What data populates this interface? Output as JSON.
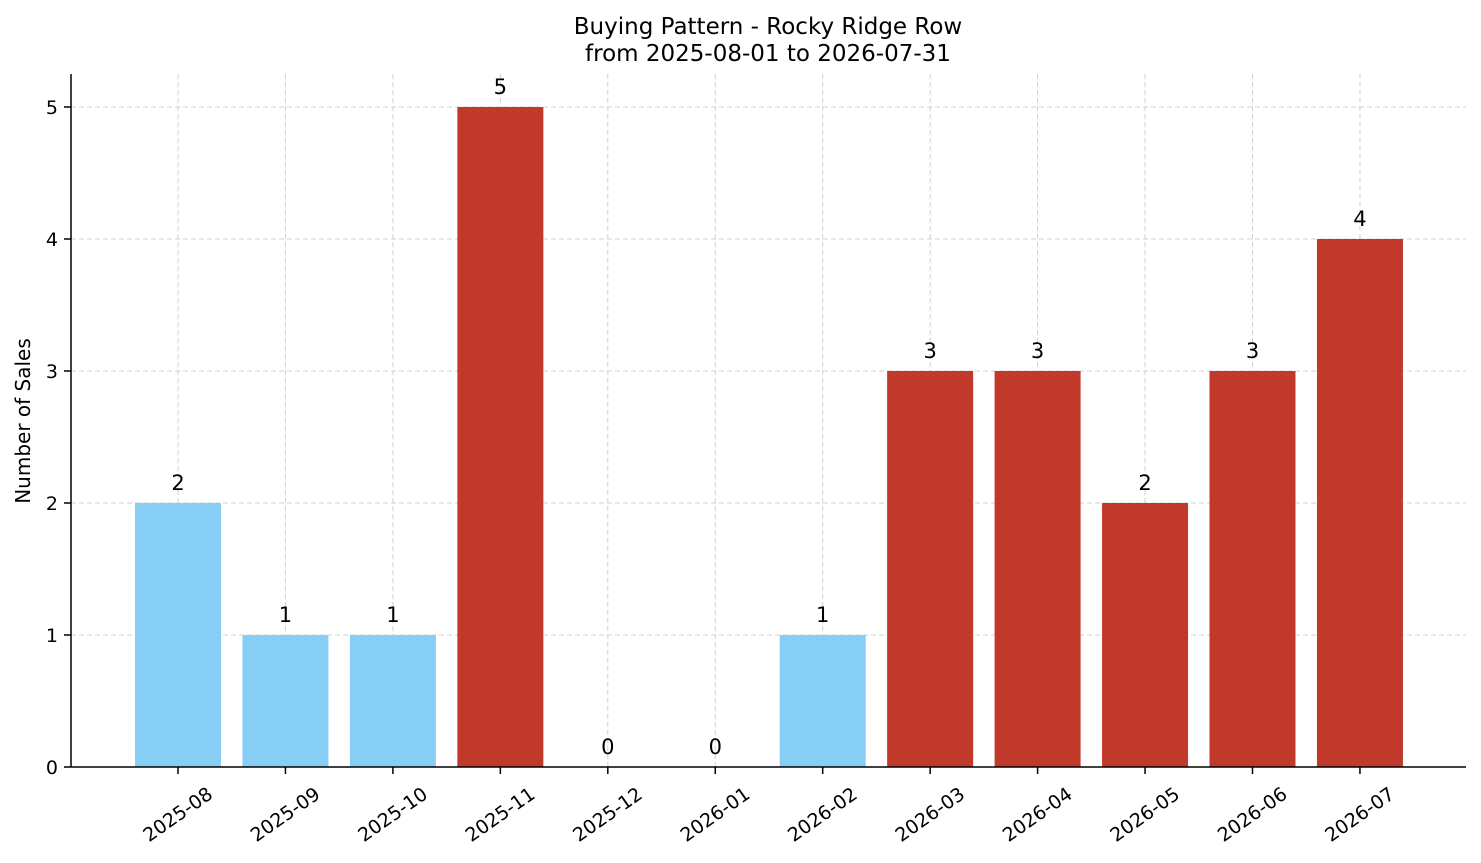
{
  "chart_data": {
    "type": "bar",
    "title": "Buying Pattern - Rocky Ridge Row",
    "subtitle": "from 2025-08-01 to 2026-07-31",
    "xlabel": "",
    "ylabel": "Number of Sales",
    "categories": [
      "2025-08",
      "2025-09",
      "2025-10",
      "2025-11",
      "2025-12",
      "2026-01",
      "2026-02",
      "2026-03",
      "2026-04",
      "2026-05",
      "2026-06",
      "2026-07"
    ],
    "values": [
      2,
      1,
      1,
      5,
      0,
      0,
      1,
      3,
      3,
      2,
      3,
      4
    ],
    "bar_colors": [
      "#87CEF5",
      "#87CEF5",
      "#87CEF5",
      "#C0392B",
      "#C0392B",
      "#C0392B",
      "#87CEF5",
      "#C0392B",
      "#C0392B",
      "#C0392B",
      "#C0392B",
      "#C0392B"
    ],
    "ylim": [
      0,
      5.25
    ],
    "yticks": [
      0,
      1,
      2,
      3,
      4,
      5
    ],
    "grid": true,
    "legend": "none"
  }
}
